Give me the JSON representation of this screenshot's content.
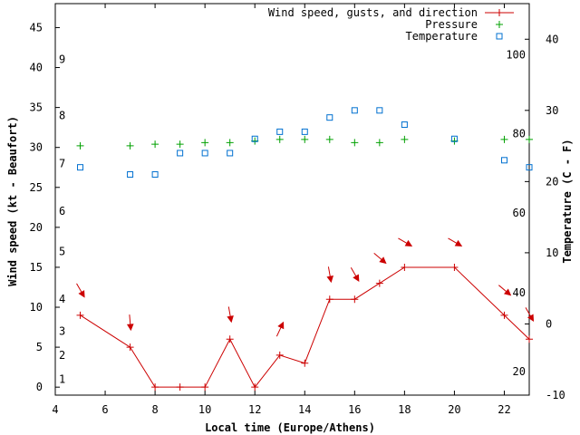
{
  "chart_data": {
    "type": "line",
    "title": "",
    "xlabel": "Local time (Europe/Athens)",
    "ylabel": "Wind speed (kt - Beaufort)",
    "y2label": "Temperature (C - F)",
    "xlim": [
      4,
      23
    ],
    "ylim": [
      -1,
      48
    ],
    "y2lim": [
      -10,
      45
    ],
    "x_ticks": [
      "4",
      "6",
      "8",
      "10",
      "12",
      "14",
      "16",
      "18",
      "20",
      "22"
    ],
    "y_ticks": [
      "0",
      "5",
      "10",
      "15",
      "20",
      "25",
      "30",
      "35",
      "40",
      "45"
    ],
    "y2_ticks": [
      "-10",
      "0",
      "10",
      "20",
      "30",
      "40"
    ],
    "beaufort_labels": [
      {
        "label": "1",
        "kt": 1
      },
      {
        "label": "2",
        "kt": 4
      },
      {
        "label": "3",
        "kt": 7
      },
      {
        "label": "4",
        "kt": 11
      },
      {
        "label": "5",
        "kt": 17
      },
      {
        "label": "6",
        "kt": 22
      },
      {
        "label": "7",
        "kt": 28
      },
      {
        "label": "8",
        "kt": 34
      },
      {
        "label": "9",
        "kt": 41
      }
    ],
    "fahrenheit_labels": [
      {
        "label": "20",
        "c": -6.7
      },
      {
        "label": "40",
        "c": 4.4
      },
      {
        "label": "60",
        "c": 15.6
      },
      {
        "label": "80",
        "c": 26.7
      },
      {
        "label": "100",
        "c": 37.8
      }
    ],
    "legend": [
      "Wind speed, gusts, and direction",
      "Pressure",
      "Temperature"
    ],
    "legend_position": "top-right",
    "series": [
      {
        "name": "Wind speed, gusts, and direction",
        "color": "#cc0000",
        "axis": "y1",
        "marker": "plus",
        "x": [
          5,
          7,
          8,
          9,
          10,
          11,
          12,
          13,
          14,
          15,
          16,
          17,
          18,
          20,
          22,
          23
        ],
        "y": [
          9,
          5,
          0,
          0,
          0,
          6,
          0,
          4,
          3,
          11,
          11,
          13,
          15,
          15,
          9,
          6
        ]
      },
      {
        "name": "Pressure",
        "color": "#00a000",
        "axis": "y1",
        "marker": "plus",
        "x": [
          5,
          7,
          8,
          9,
          10,
          11,
          12,
          13,
          14,
          15,
          16,
          17,
          18,
          20,
          22,
          23
        ],
        "y": [
          30.2,
          30.2,
          30.4,
          30.4,
          30.6,
          30.6,
          30.8,
          31.0,
          31.0,
          31.0,
          30.6,
          30.6,
          31.0,
          30.8,
          31.0,
          31.0
        ]
      },
      {
        "name": "Temperature",
        "color": "#0070d0",
        "axis": "y2",
        "marker": "square",
        "x": [
          5,
          7,
          8,
          9,
          10,
          11,
          12,
          13,
          14,
          15,
          16,
          17,
          18,
          20,
          22,
          23
        ],
        "y": [
          22,
          21,
          21,
          24,
          24,
          24,
          26,
          27,
          27,
          29,
          30,
          30,
          28,
          26,
          23,
          22
        ]
      }
    ],
    "wind_direction": [
      {
        "x": 5,
        "dir_deg": 330
      },
      {
        "x": 7,
        "dir_deg": 355
      },
      {
        "x": 11,
        "dir_deg": 350
      },
      {
        "x": 13,
        "dir_deg": 205
      },
      {
        "x": 15,
        "dir_deg": 350
      },
      {
        "x": 16,
        "dir_deg": 330
      },
      {
        "x": 17,
        "dir_deg": 310
      },
      {
        "x": 18,
        "dir_deg": 300
      },
      {
        "x": 20,
        "dir_deg": 300
      },
      {
        "x": 22,
        "dir_deg": 310
      },
      {
        "x": 23,
        "dir_deg": 330
      }
    ]
  }
}
